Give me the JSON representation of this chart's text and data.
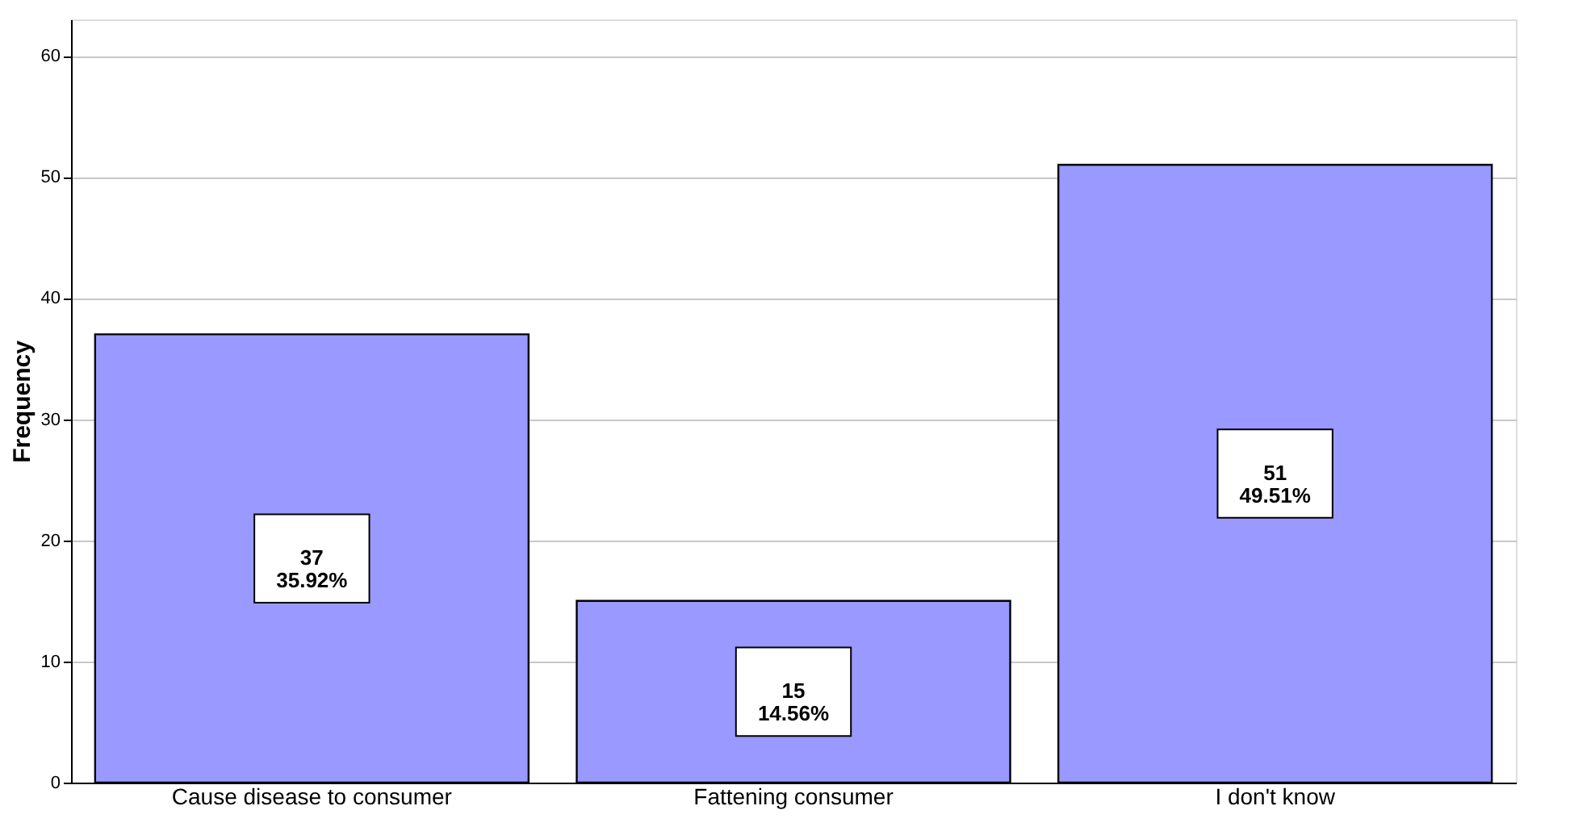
{
  "chart_data": {
    "type": "bar",
    "ylabel": "Frequency",
    "categories": [
      "Cause disease to consumer",
      "Fattening consumer",
      "I don't know"
    ],
    "values": [
      37,
      15,
      51
    ],
    "value_labels": [
      "37\n35.92%",
      "15\n14.56%",
      "51\n49.51%"
    ],
    "color": "#9999ff",
    "ylim": [
      0,
      63
    ],
    "yticks": [
      0,
      10,
      20,
      30,
      40,
      50,
      60
    ],
    "grid": "y"
  }
}
